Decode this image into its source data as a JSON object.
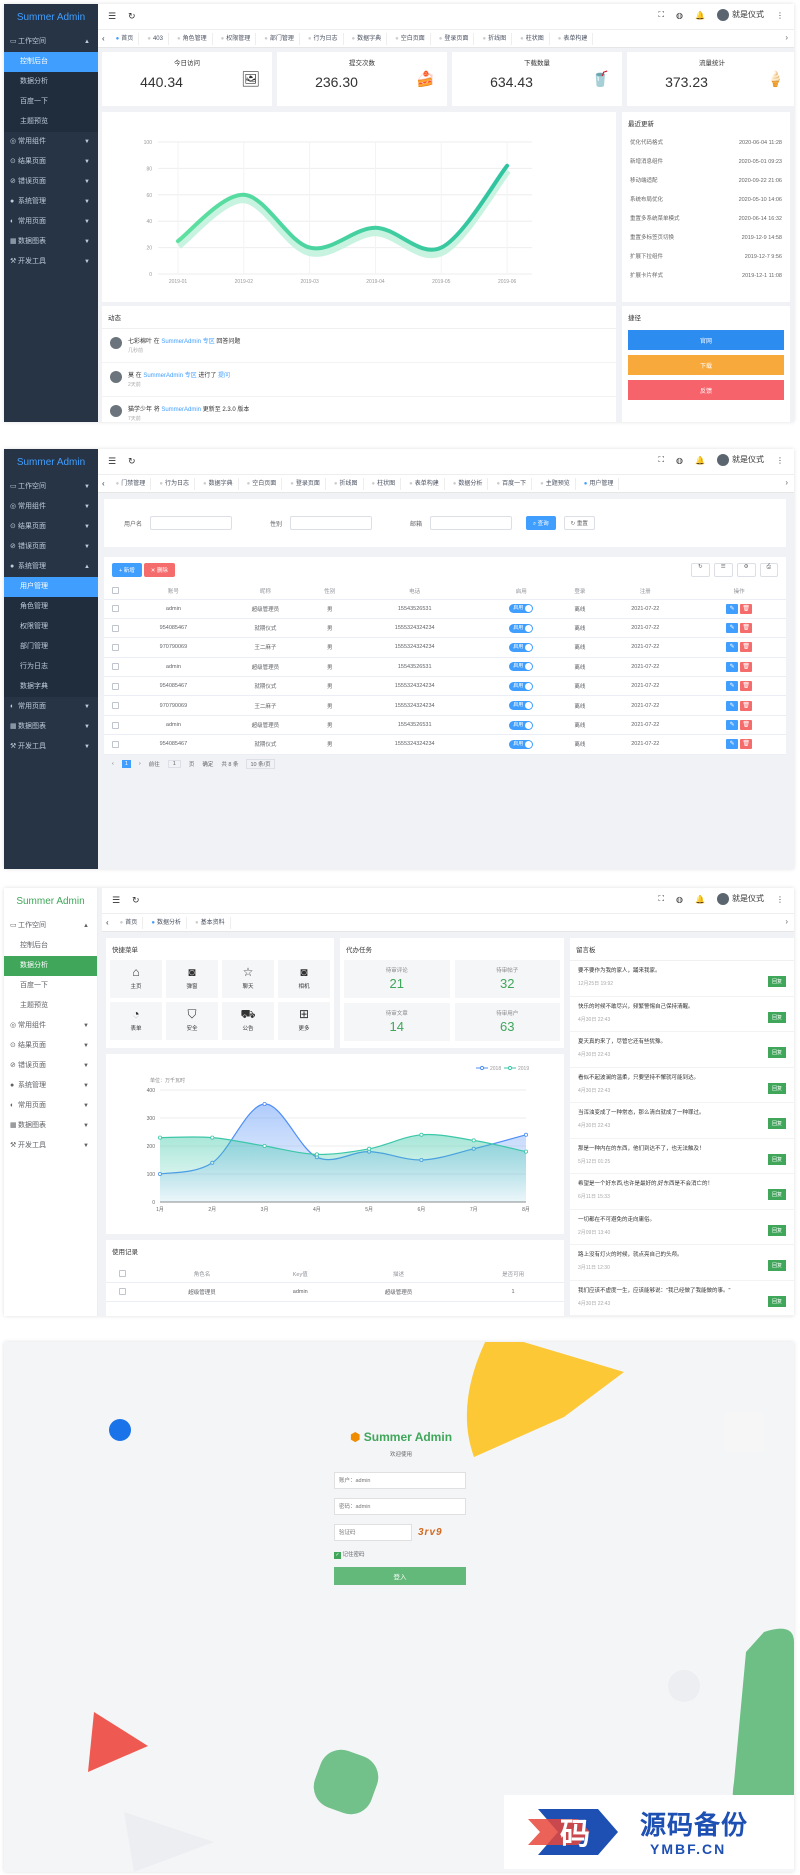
{
  "s1": {
    "logo": "Summer Admin",
    "menu": [
      {
        "label": "工作空间",
        "icon": "▭",
        "open": true,
        "children": [
          "控制后台",
          "数据分析",
          "百度一下",
          "主题预览"
        ],
        "active": 0
      },
      {
        "label": "常用组件",
        "icon": "◎"
      },
      {
        "label": "结果页面",
        "icon": "⊙"
      },
      {
        "label": "错误页面",
        "icon": "⊘"
      },
      {
        "label": "系统管理",
        "icon": "●"
      },
      {
        "label": "常用页面",
        "icon": "◐"
      },
      {
        "label": "数据图表",
        "icon": "▦"
      },
      {
        "label": "开发工具",
        "icon": "⚒"
      }
    ],
    "tags": [
      "首页",
      "403",
      "角色管理",
      "权限管理",
      "部门管理",
      "行为日志",
      "数据字典",
      "空白页面",
      "登录页面",
      "折线图",
      "柱状图",
      "表单构建"
    ],
    "user": "就是仪式",
    "stats": [
      {
        "title": "今日访问",
        "value": "440.34",
        "icon": "🖼"
      },
      {
        "title": "提交次数",
        "value": "236.30",
        "icon": "🍰"
      },
      {
        "title": "下载数量",
        "value": "634.43",
        "icon": "🥤"
      },
      {
        "title": "流量统计",
        "value": "373.23",
        "icon": "🍦"
      }
    ],
    "chart_data": {
      "type": "line",
      "x": [
        "2019-01",
        "2019-02",
        "2019-03",
        "2019-04",
        "2019-05",
        "2019-06"
      ],
      "values": [
        25,
        60,
        20,
        35,
        20,
        82
      ],
      "ylim": [
        0,
        100
      ],
      "yticks": [
        "0",
        "20",
        "40",
        "60",
        "80",
        "100"
      ]
    },
    "updates_title": "最近更新",
    "updates": [
      [
        "优化代码格式",
        "2020-06-04 11:28"
      ],
      [
        "新增消息组件",
        "2020-05-01 09:23"
      ],
      [
        "移动端适配",
        "2020-09-22 21:06"
      ],
      [
        "系统布局优化",
        "2020-05-10 14:06"
      ],
      [
        "重置多系统菜单模式",
        "2020-06-14 16:32"
      ],
      [
        "重置多标签页切换",
        "2019-12-9 14:58"
      ],
      [
        "扩展下拉组件",
        "2019-12-7 9:56"
      ],
      [
        "扩展卡片样式",
        "2019-12-1 11:08"
      ]
    ],
    "feed_title": "动态",
    "feeds": [
      {
        "user": "七彩棉叶",
        "mid": "在",
        "target": "SummerAdmin 专区",
        "act": "回答问题",
        "time": "几秒前"
      },
      {
        "user": "莫",
        "mid": "在",
        "target": "SummerAdmin 专区",
        "act": "进行了",
        "extra": "提问",
        "time": "2天前"
      },
      {
        "user": "猫学少年",
        "mid": "将",
        "target": "SummerAdmin",
        "act": "更新至 2.3.0 版本",
        "time": "7天前"
      }
    ],
    "quick_title": "捷径",
    "quick": [
      {
        "label": "官网",
        "color": "#2d8cf0"
      },
      {
        "label": "下载",
        "color": "#f8a93b"
      },
      {
        "label": "反馈",
        "color": "#f7636b"
      }
    ]
  },
  "s2": {
    "menu_top": [
      {
        "label": "工作空间",
        "icon": "▭"
      },
      {
        "label": "常用组件",
        "icon": "◎"
      },
      {
        "label": "结果页面",
        "icon": "⊙"
      },
      {
        "label": "错误页面",
        "icon": "⊘"
      },
      {
        "label": "系统管理",
        "icon": "●",
        "open": true
      }
    ],
    "sub": [
      "用户管理",
      "角色管理",
      "权限管理",
      "部门管理",
      "行为日志",
      "数据字典"
    ],
    "menu_bottom": [
      {
        "label": "常用页面",
        "icon": "◐"
      },
      {
        "label": "数据图表",
        "icon": "▦"
      },
      {
        "label": "开发工具",
        "icon": "⚒"
      }
    ],
    "tags": [
      "门禁管理",
      "行为日志",
      "数据字典",
      "空白页面",
      "登录页面",
      "折线图",
      "柱状图",
      "表单构建",
      "数据分析",
      "百度一下",
      "主题预览",
      "用户管理"
    ],
    "search": {
      "username": "用户名",
      "gender": "性别",
      "email": "邮箱",
      "query": "查询",
      "reset": "重置"
    },
    "add": "+ 新增",
    "del": "✕ 删除",
    "headers": [
      "账号",
      "昵称",
      "性别",
      "电话",
      "启用",
      "登录",
      "注册",
      "操作"
    ],
    "rows": [
      [
        "admin",
        "超级管理员",
        "男",
        "15543526531",
        "启用",
        "离线",
        "2021-07-22"
      ],
      [
        "954085467",
        "就期仪式",
        "男",
        "1555324324234",
        "启用",
        "离线",
        "2021-07-22"
      ],
      [
        "970790069",
        "王二麻子",
        "男",
        "1555324324234",
        "启用",
        "离线",
        "2021-07-22"
      ],
      [
        "admin",
        "超级管理员",
        "男",
        "15543526531",
        "启用",
        "离线",
        "2021-07-22"
      ],
      [
        "954085467",
        "就期仪式",
        "男",
        "1555324324234",
        "启用",
        "离线",
        "2021-07-22"
      ],
      [
        "970790069",
        "王二麻子",
        "男",
        "1555324324234",
        "启用",
        "离线",
        "2021-07-22"
      ],
      [
        "admin",
        "超级管理员",
        "男",
        "15543526531",
        "启用",
        "离线",
        "2021-07-22"
      ],
      [
        "954085467",
        "就期仪式",
        "男",
        "1555324324234",
        "启用",
        "离线",
        "2021-07-22"
      ]
    ],
    "pager": {
      "page": "1",
      "goto": "前往",
      "page2": "1",
      "unit": "页",
      "confirm": "确定",
      "total": "共 8 条",
      "size": "10 条/页"
    }
  },
  "s3": {
    "logo": "Summer Admin",
    "menu_top": [
      {
        "label": "工作空间",
        "icon": "▭",
        "open": true
      }
    ],
    "sub": [
      "控制后台",
      "数据分析",
      "百度一下",
      "主题预览"
    ],
    "menu_bottom": [
      {
        "label": "常用组件",
        "icon": "◎"
      },
      {
        "label": "结果页面",
        "icon": "⊙"
      },
      {
        "label": "错误页面",
        "icon": "⊘"
      },
      {
        "label": "系统管理",
        "icon": "●"
      },
      {
        "label": "常用页面",
        "icon": "◐"
      },
      {
        "label": "数据图表",
        "icon": "▦"
      },
      {
        "label": "开发工具",
        "icon": "⚒"
      }
    ],
    "tags": [
      "首页",
      "数据分析",
      "基本资料"
    ],
    "quick_title": "快捷菜单",
    "quick": [
      {
        "label": "主页",
        "g": "⌂"
      },
      {
        "label": "弹窗",
        "g": "◙"
      },
      {
        "label": "聊天",
        "g": "☆"
      },
      {
        "label": "相机",
        "g": "◙"
      },
      {
        "label": "表单",
        "g": "◔"
      },
      {
        "label": "安全",
        "g": "⛉"
      },
      {
        "label": "公告",
        "g": "⛟"
      },
      {
        "label": "更多",
        "g": "⊞"
      }
    ],
    "todo_title": "代办任务",
    "todos": [
      {
        "label": "待审评论",
        "n": "21"
      },
      {
        "label": "待审帖子",
        "n": "32"
      },
      {
        "label": "待审文章",
        "n": "14"
      },
      {
        "label": "待审用户",
        "n": "63"
      }
    ],
    "chart_data": {
      "type": "area",
      "unit": "单位：万千瓦时",
      "x": [
        "1月",
        "2月",
        "3月",
        "4月",
        "5月",
        "6月",
        "7月",
        "8月"
      ],
      "series": [
        {
          "name": "2018",
          "values": [
            100,
            140,
            350,
            160,
            180,
            150,
            190,
            240
          ]
        },
        {
          "name": "2019",
          "values": [
            230,
            230,
            200,
            170,
            190,
            240,
            220,
            180
          ]
        }
      ],
      "ylim": [
        0,
        400
      ],
      "yticks": [
        "0",
        "100",
        "200",
        "300",
        "400"
      ]
    },
    "records_title": "使用记录",
    "records_headers": [
      "角色名",
      "Key值",
      "描述",
      "是否可用"
    ],
    "records": [
      [
        "超级管理员",
        "admin",
        "超级管理员",
        "1"
      ]
    ],
    "msg_title": "留言板",
    "messages": [
      [
        "要不要作为我的家人，踊来我家。",
        "12月25日 19:92"
      ],
      [
        "快乐的时候不敢尽兴，频繁警惕自己保持清醒。",
        "4月30日 22:43"
      ],
      [
        "夏天真的来了，尽管它还有些犹豫。",
        "4月30日 22:43"
      ],
      [
        "看似不起波澜的温柔，只要坚持不懈就可能到达。",
        "4月30日 22:43"
      ],
      [
        "当浑浊变成了一种常态，那么清白就成了一种罪过。",
        "4月30日 22:43"
      ],
      [
        "那是一种内在的东西，他们到达不了，也无法触及！",
        "5月12日 01:25"
      ],
      [
        "希望是一个好东西,也许是最好的,好东西是不会消亡的！",
        "6月11日 15:33"
      ],
      [
        "一切都在不可避免的走向庸俗。",
        "2月09日 13:40"
      ],
      [
        "路上没有灯火的时候，就点亮自己的头颅。",
        "3月11日 12:30"
      ],
      [
        "我们应该不虚度一生，应该能够说：\"我已经做了我能做的事。\"",
        "4月30日 22:43"
      ]
    ],
    "reply": "回复"
  },
  "s4": {
    "brand": "Summer Admin",
    "welcome": "欢迎使用",
    "account": "账户：admin",
    "password": "密码：admin",
    "captcha": "验证码",
    "captcha_img": "3rv9",
    "remember": "记住密码",
    "login": "登入"
  },
  "watermark": {
    "title": "源码备份",
    "sub": "YMBF.CN",
    "glyph": "码"
  }
}
